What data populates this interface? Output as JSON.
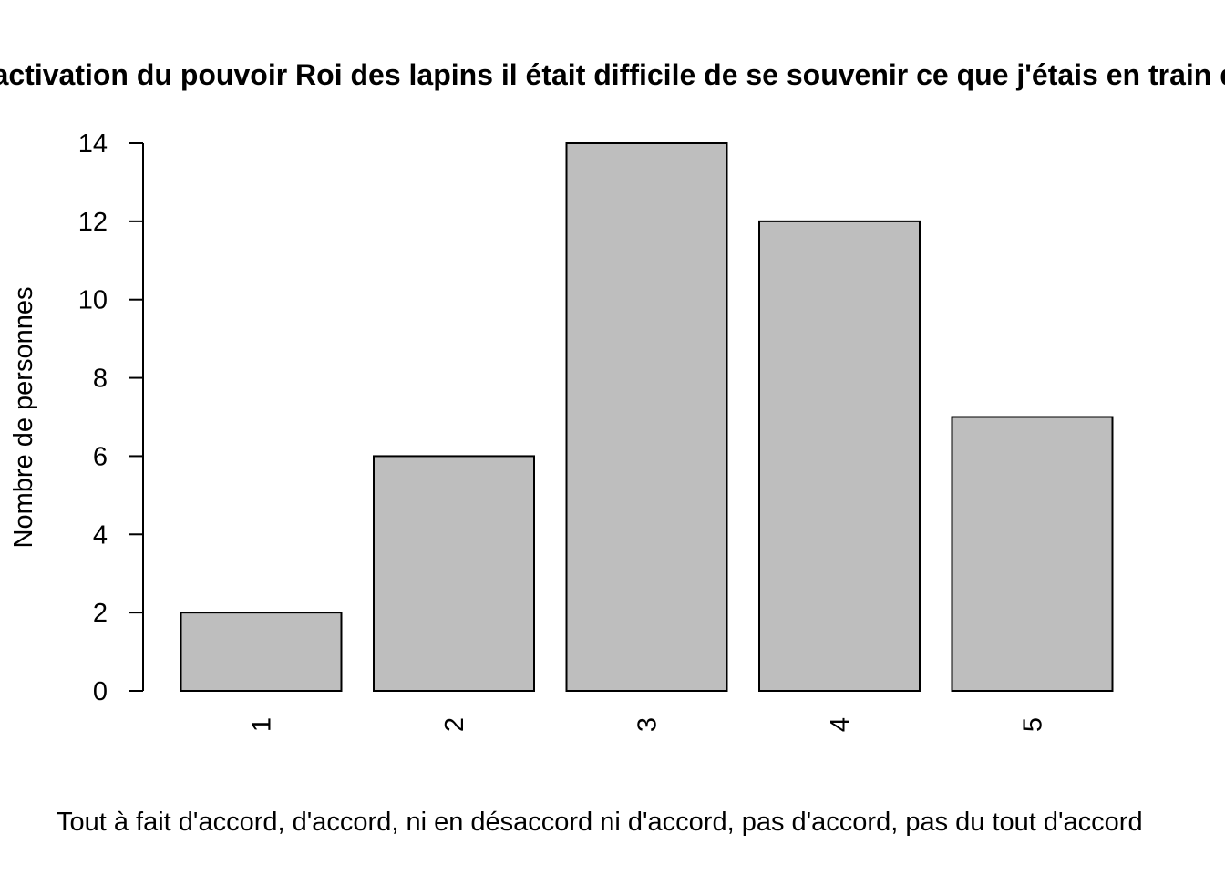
{
  "chart_data": {
    "type": "bar",
    "title": "Après activation du pouvoir Roi des lapins il était difficile de se souvenir ce que j'étais en train de faire",
    "xlabel": "Tout à fait d'accord, d'accord, ni en désaccord ni d'accord, pas d'accord, pas du tout d'accord",
    "ylabel": "Nombre de personnes",
    "categories": [
      "1",
      "2",
      "3",
      "4",
      "5"
    ],
    "values": [
      2,
      6,
      14,
      12,
      7
    ],
    "ylim": [
      0,
      14
    ],
    "yticks": [
      0,
      2,
      4,
      6,
      8,
      10,
      12,
      14
    ],
    "bar_color": "#bebebe",
    "grid": false,
    "legend": "none"
  }
}
